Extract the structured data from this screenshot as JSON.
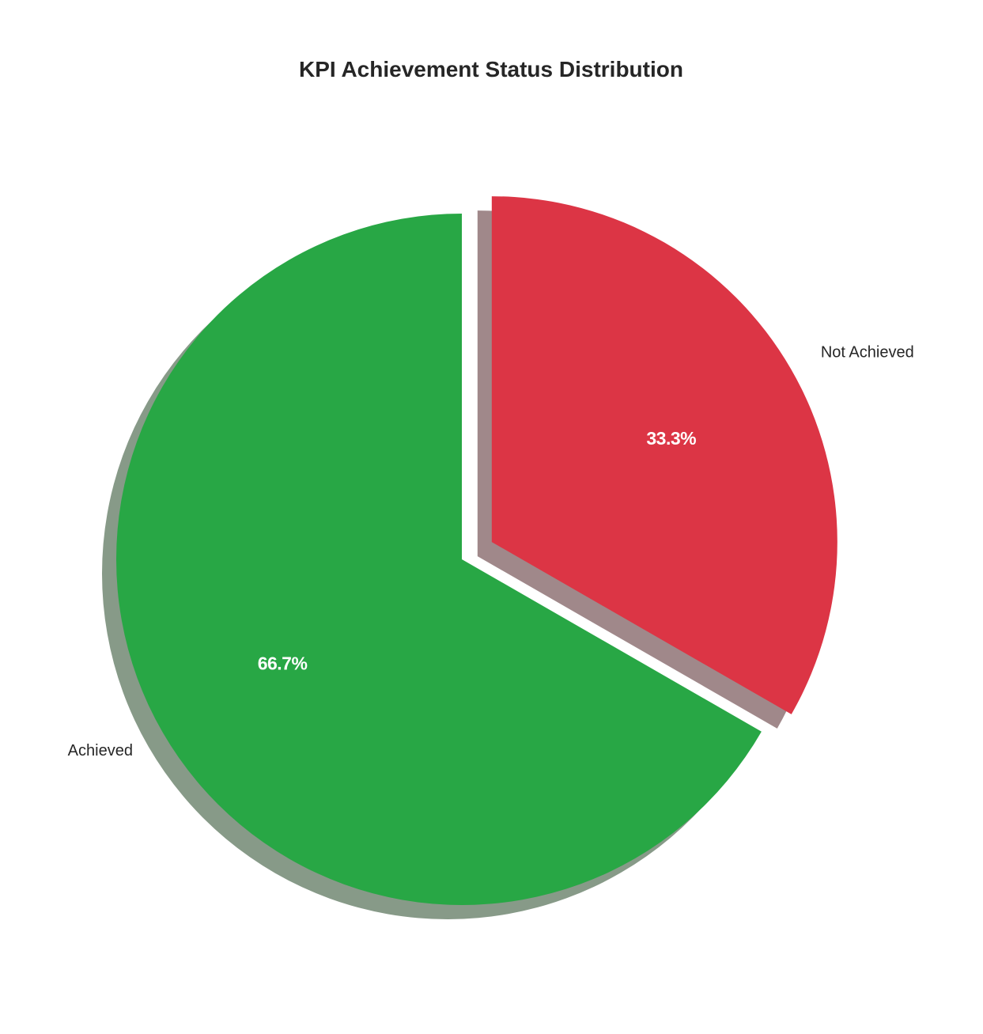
{
  "chart_data": {
    "type": "pie",
    "title": "KPI Achievement Status Distribution",
    "categories": [
      "Achieved",
      "Not Achieved"
    ],
    "values": [
      66.7,
      33.3
    ],
    "value_labels": [
      "66.7%",
      "33.3%"
    ],
    "colors": [
      "#28a745",
      "#dc3545"
    ],
    "explode": [
      0,
      0.1
    ],
    "start_angle": 90,
    "shadow": true,
    "legend": "none"
  }
}
